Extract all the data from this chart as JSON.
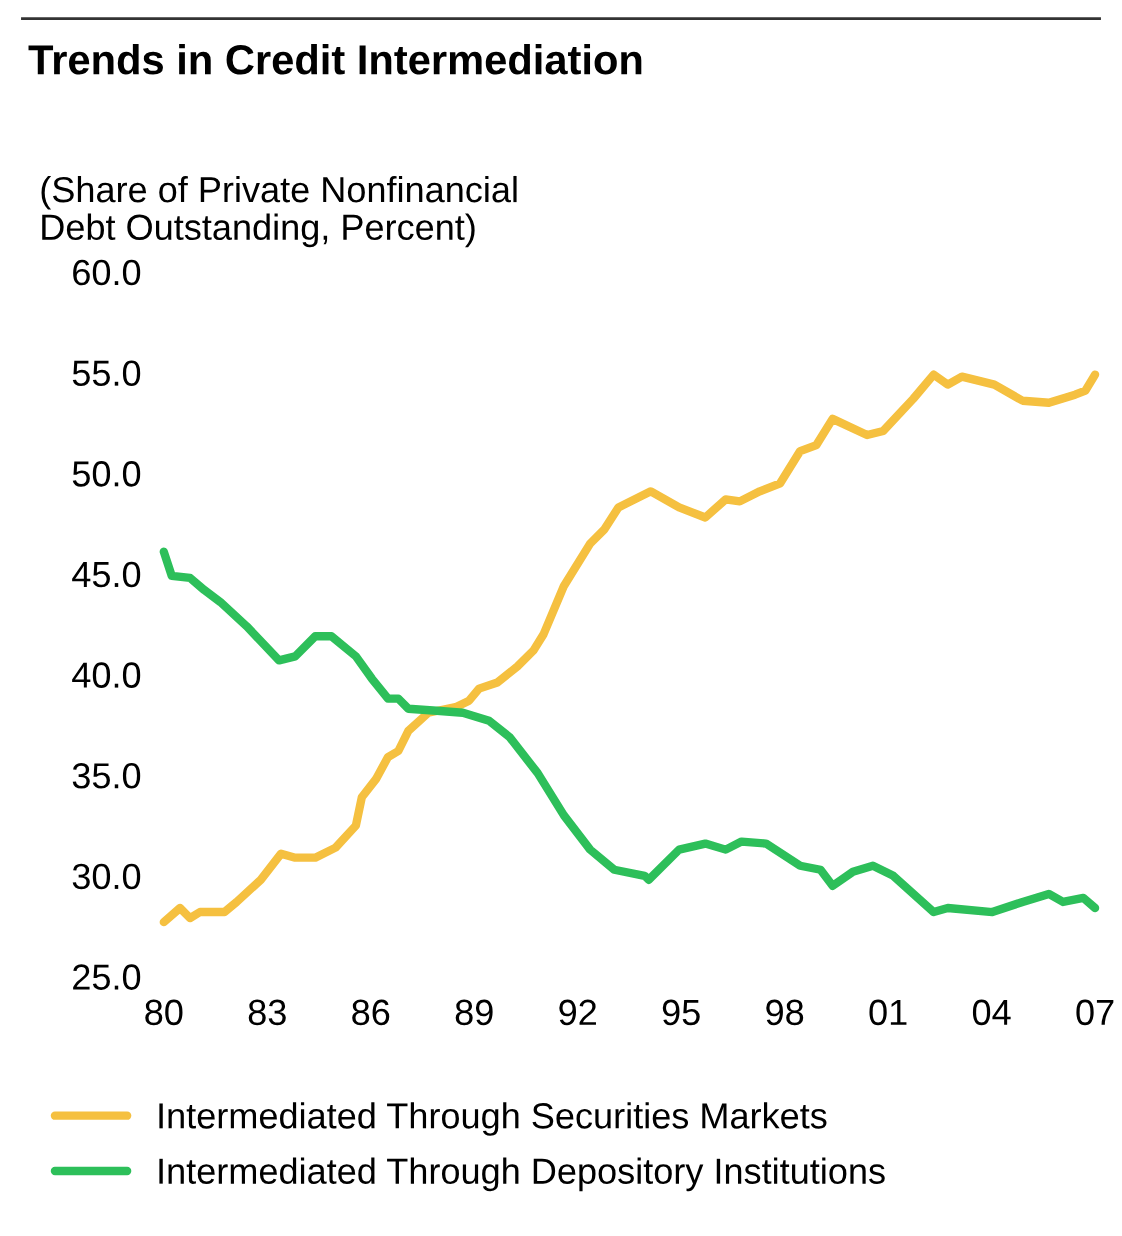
{
  "chart_data": {
    "type": "line",
    "title": "Trends in Credit Intermediation",
    "subtitle": "(Share of Private Nonfinancial\nDebt Outstanding, Percent)",
    "xlim": [
      1980,
      2007
    ],
    "ylim": [
      25,
      60
    ],
    "xticks": [
      {
        "value": 1980,
        "label": "80"
      },
      {
        "value": 1983,
        "label": "83"
      },
      {
        "value": 1986,
        "label": "86"
      },
      {
        "value": 1989,
        "label": "89"
      },
      {
        "value": 1992,
        "label": "92"
      },
      {
        "value": 1995,
        "label": "95"
      },
      {
        "value": 1998,
        "label": "98"
      },
      {
        "value": 2001,
        "label": "01"
      },
      {
        "value": 2004,
        "label": "04"
      },
      {
        "value": 2007,
        "label": "07"
      }
    ],
    "yticks": [
      {
        "value": 25,
        "label": "25.0"
      },
      {
        "value": 30,
        "label": "30.0"
      },
      {
        "value": 35,
        "label": "35.0"
      },
      {
        "value": 40,
        "label": "40.0"
      },
      {
        "value": 45,
        "label": "45.0"
      },
      {
        "value": 50,
        "label": "50.0"
      },
      {
        "value": 55,
        "label": "55.0"
      },
      {
        "value": 60,
        "label": "60.0"
      }
    ],
    "grid": false,
    "legend": "bottom",
    "marker": "none",
    "line_style": "solid",
    "series": [
      {
        "name": "Intermediated Through Securities Markets",
        "color": "#f5c040",
        "x": [
          1980.0,
          1980.47,
          1980.76,
          1981.05,
          1981.76,
          1982.11,
          1982.81,
          1983.4,
          1983.81,
          1984.39,
          1984.98,
          1985.57,
          1985.74,
          1986.15,
          1986.5,
          1986.8,
          1987.09,
          1987.67,
          1988.49,
          1988.85,
          1989.14,
          1989.67,
          1990.25,
          1990.72,
          1991.01,
          1991.6,
          1992.36,
          1992.77,
          1993.18,
          1994.12,
          1994.94,
          1995.7,
          1996.29,
          1996.7,
          1997.28,
          1997.87,
          1998.45,
          1998.92,
          1999.39,
          2000.39,
          2000.86,
          2001.73,
          2002.32,
          2002.73,
          2003.14,
          2004.08,
          2004.9,
          2005.66,
          2006.42,
          2006.72,
          2007.0
        ],
        "values": [
          27.7,
          28.4,
          27.9,
          28.2,
          28.2,
          28.7,
          29.8,
          31.1,
          30.9,
          30.9,
          31.4,
          32.5,
          33.9,
          34.8,
          35.9,
          36.2,
          37.2,
          38.1,
          38.4,
          38.7,
          39.3,
          39.6,
          40.4,
          41.2,
          42.0,
          44.4,
          46.5,
          47.2,
          48.3,
          49.1,
          48.3,
          47.8,
          48.7,
          48.6,
          49.1,
          49.5,
          51.1,
          51.4,
          52.7,
          51.9,
          52.1,
          53.7,
          54.9,
          54.4,
          54.8,
          54.4,
          53.6,
          53.5,
          53.9,
          54.1,
          54.9
        ]
      },
      {
        "name": "Intermediated Through Depository Institutions",
        "color": "#2dbf5a",
        "x": [
          1980.0,
          1980.23,
          1980.76,
          1981.17,
          1981.64,
          1982.4,
          1983.34,
          1983.81,
          1984.39,
          1984.86,
          1985.57,
          1986.03,
          1986.5,
          1986.8,
          1987.09,
          1987.91,
          1988.67,
          1989.43,
          1990.02,
          1990.84,
          1991.6,
          1992.36,
          1993.06,
          1993.94,
          1994.06,
          1994.94,
          1995.7,
          1996.29,
          1996.75,
          1997.46,
          1998.45,
          1999.04,
          1999.39,
          1999.98,
          2000.56,
          2001.15,
          2002.32,
          2002.73,
          2004.02,
          2004.9,
          2005.66,
          2006.07,
          2006.66,
          2007.0
        ],
        "values": [
          46.1,
          44.9,
          44.8,
          44.2,
          43.6,
          42.4,
          40.7,
          40.9,
          41.9,
          41.9,
          40.9,
          39.8,
          38.8,
          38.8,
          38.3,
          38.2,
          38.1,
          37.7,
          36.9,
          35.1,
          33.0,
          31.3,
          30.3,
          30.0,
          29.8,
          31.3,
          31.6,
          31.3,
          31.7,
          31.6,
          30.5,
          30.3,
          29.5,
          30.2,
          30.5,
          30.0,
          28.2,
          28.4,
          28.2,
          28.7,
          29.1,
          28.7,
          28.9,
          28.4
        ]
      }
    ]
  }
}
